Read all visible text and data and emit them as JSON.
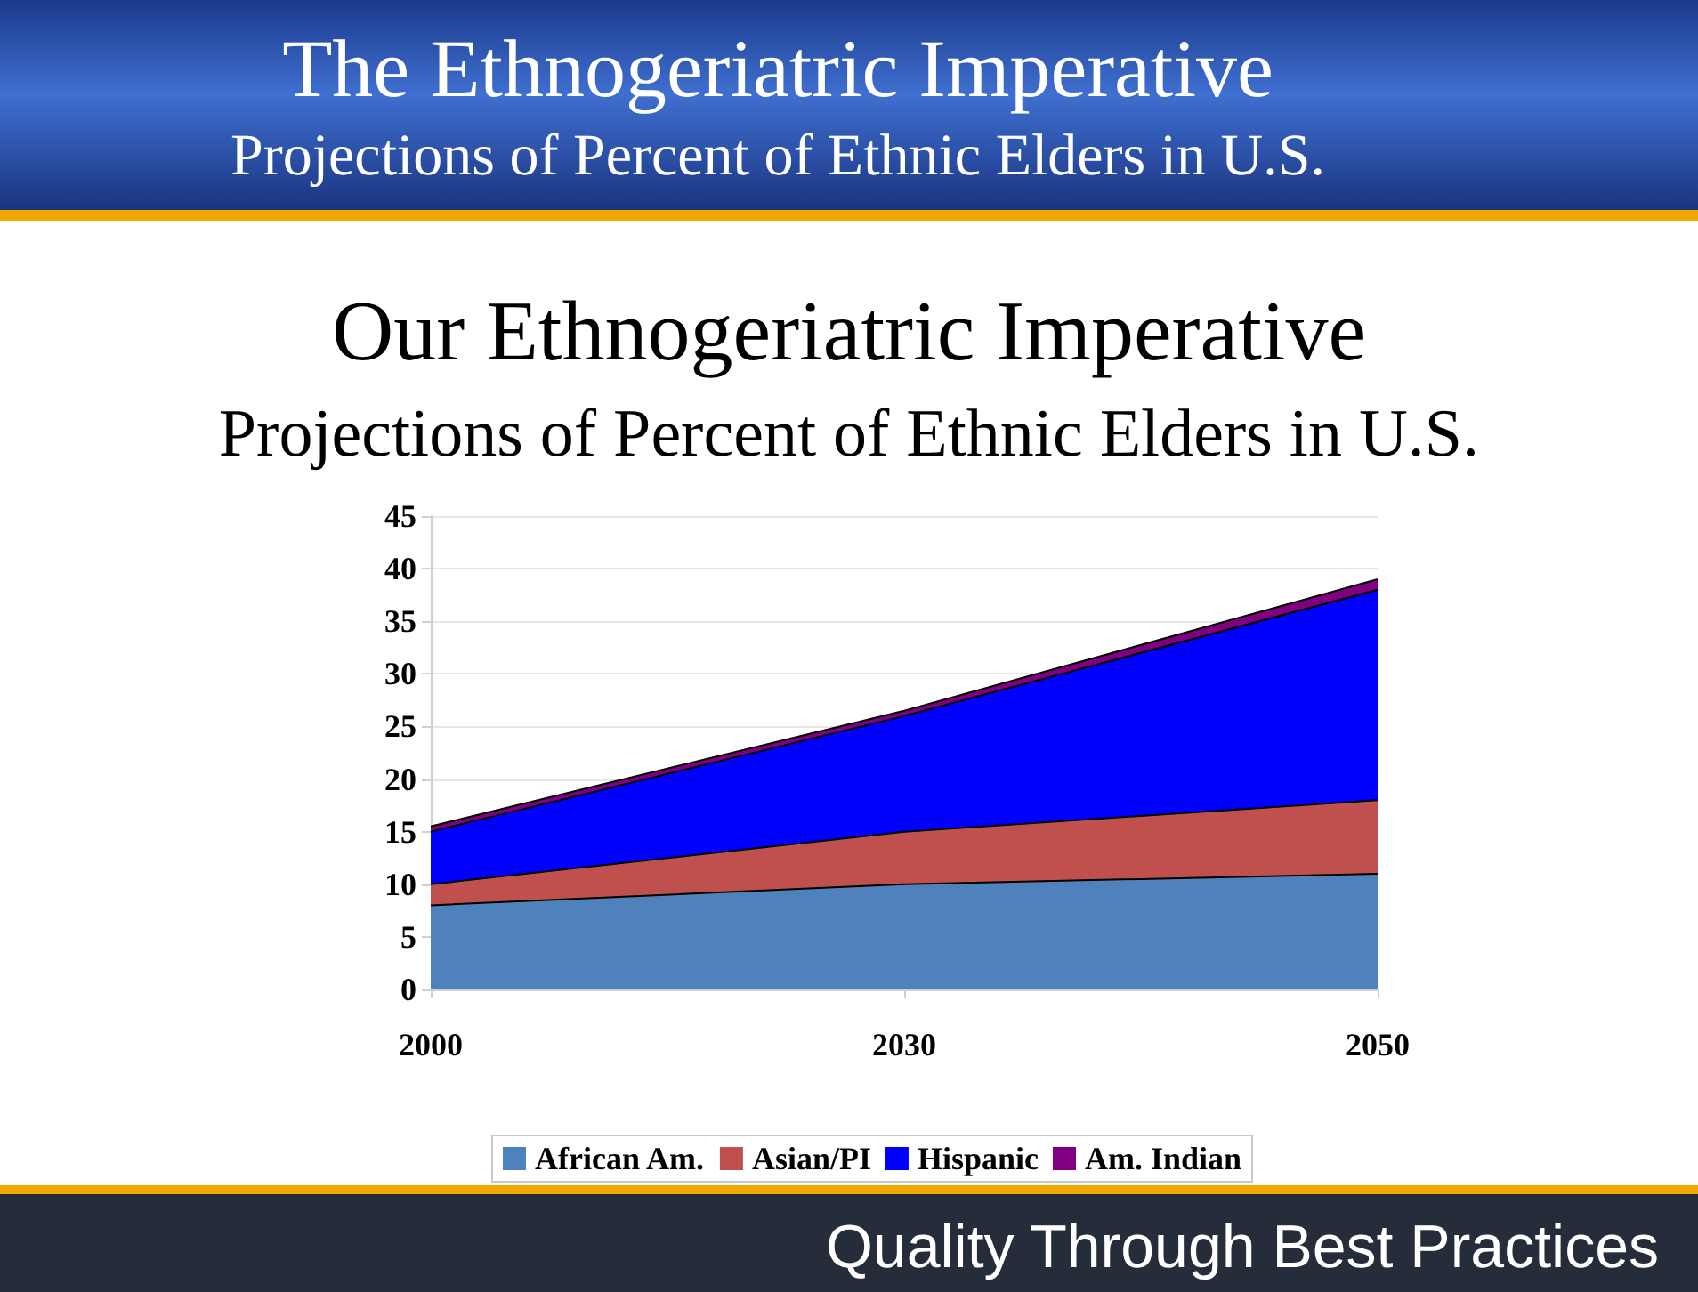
{
  "chart_data": {
    "type": "area",
    "title": "Our Ethnogeriatric Imperative",
    "subtitle": "Projections of Percent of Ethnic Elders in U.S.",
    "annotations": [
      "The Ethnogeriatric Imperative",
      "Projections of Percent of Ethnic Elders in U.S.",
      "Quality Through Best Practices"
    ],
    "categories": [
      "2000",
      "2030",
      "2050"
    ],
    "stacked": true,
    "series": [
      {
        "name": "African Am.",
        "color": "#4f81bd",
        "values": [
          8,
          10,
          11
        ]
      },
      {
        "name": "Asian/PI",
        "color": "#c0504d",
        "values": [
          2,
          5,
          7
        ]
      },
      {
        "name": "Hispanic",
        "color": "#0000ff",
        "values": [
          5,
          11,
          20
        ]
      },
      {
        "name": "Am. Indian",
        "color": "#800080",
        "values": [
          0.5,
          0.5,
          1
        ]
      }
    ],
    "ylim": [
      0,
      45
    ],
    "yticks": [
      0,
      5,
      10,
      15,
      20,
      25,
      30,
      35,
      40,
      45
    ],
    "grid": "y",
    "legend": "bottom"
  }
}
